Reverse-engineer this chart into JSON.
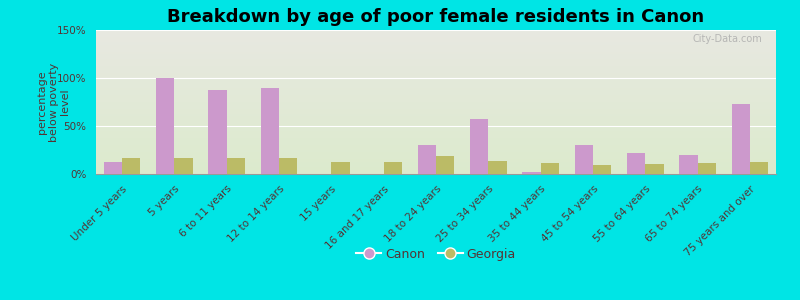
{
  "title": "Breakdown by age of poor female residents in Canon",
  "ylabel": "percentage\nbelow poverty\nlevel",
  "categories": [
    "Under 5 years",
    "5 years",
    "6 to 11 years",
    "12 to 14 years",
    "15 years",
    "16 and 17 years",
    "18 to 24 years",
    "25 to 34 years",
    "35 to 44 years",
    "45 to 54 years",
    "55 to 64 years",
    "65 to 74 years",
    "75 years and over"
  ],
  "canon_values": [
    12,
    100,
    88,
    90,
    0,
    0,
    30,
    57,
    2,
    30,
    22,
    20,
    73
  ],
  "georgia_values": [
    17,
    17,
    17,
    17,
    12,
    12,
    19,
    14,
    11,
    9,
    10,
    11,
    13
  ],
  "canon_color": "#cc99cc",
  "georgia_color": "#bbbb66",
  "outer_bg": "#00e5e5",
  "plot_bg_top": "#e8e8e8",
  "plot_bg_bottom": "#d8ecc8",
  "ylim": [
    0,
    150
  ],
  "yticks": [
    0,
    50,
    100,
    150
  ],
  "ytick_labels": [
    "0%",
    "50%",
    "100%",
    "150%"
  ],
  "bar_width": 0.35,
  "title_fontsize": 13,
  "tick_fontsize": 7.5,
  "ylabel_fontsize": 8,
  "legend_labels": [
    "Canon",
    "Georgia"
  ],
  "watermark": "City-Data.com"
}
